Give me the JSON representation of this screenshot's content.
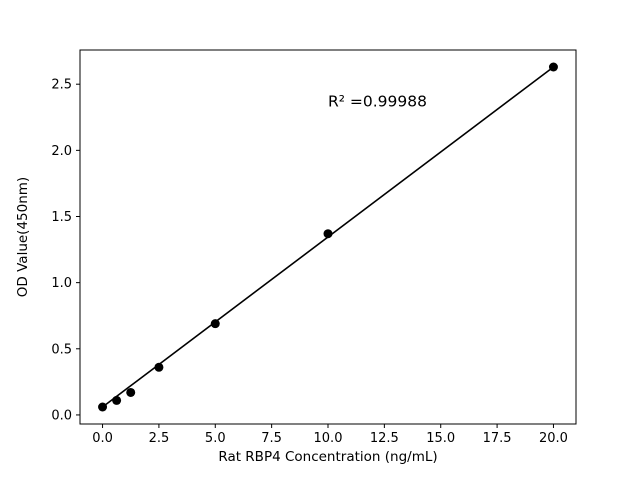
{
  "figure": {
    "background": "#ffffff"
  },
  "chart_data": {
    "type": "scatter",
    "title": "",
    "xlabel": "Rat RBP4 Concentration (ng/mL)",
    "ylabel": "OD Value(450nm)",
    "annotation": "R² =0.99988",
    "x": [
      0,
      0.625,
      1.25,
      2.5,
      5,
      10,
      20
    ],
    "y": [
      0.06,
      0.11,
      0.17,
      0.36,
      0.69,
      1.37,
      2.63
    ],
    "fit_line": {
      "x1": 0,
      "y1": 0.06,
      "x2": 20,
      "y2": 2.63
    },
    "xlim": [
      -1,
      21
    ],
    "ylim": [
      -0.0685,
      2.7585
    ],
    "xticks": [
      0,
      2.5,
      5,
      7.5,
      10,
      12.5,
      15,
      17.5,
      20
    ],
    "xtick_labels": [
      "0.0",
      "2.5",
      "5.0",
      "7.5",
      "10.0",
      "12.5",
      "15.0",
      "17.5",
      "20.0"
    ],
    "yticks": [
      0,
      0.5,
      1,
      1.5,
      2,
      2.5
    ],
    "ytick_labels": [
      "0.0",
      "0.5",
      "1.0",
      "1.5",
      "2.0",
      "2.5"
    ],
    "grid": false,
    "legend": null,
    "marker_color": "#000000",
    "line_color": "#000000",
    "frame_color": "#000000",
    "annotation_position": {
      "x": 10,
      "y": 2.33
    }
  }
}
